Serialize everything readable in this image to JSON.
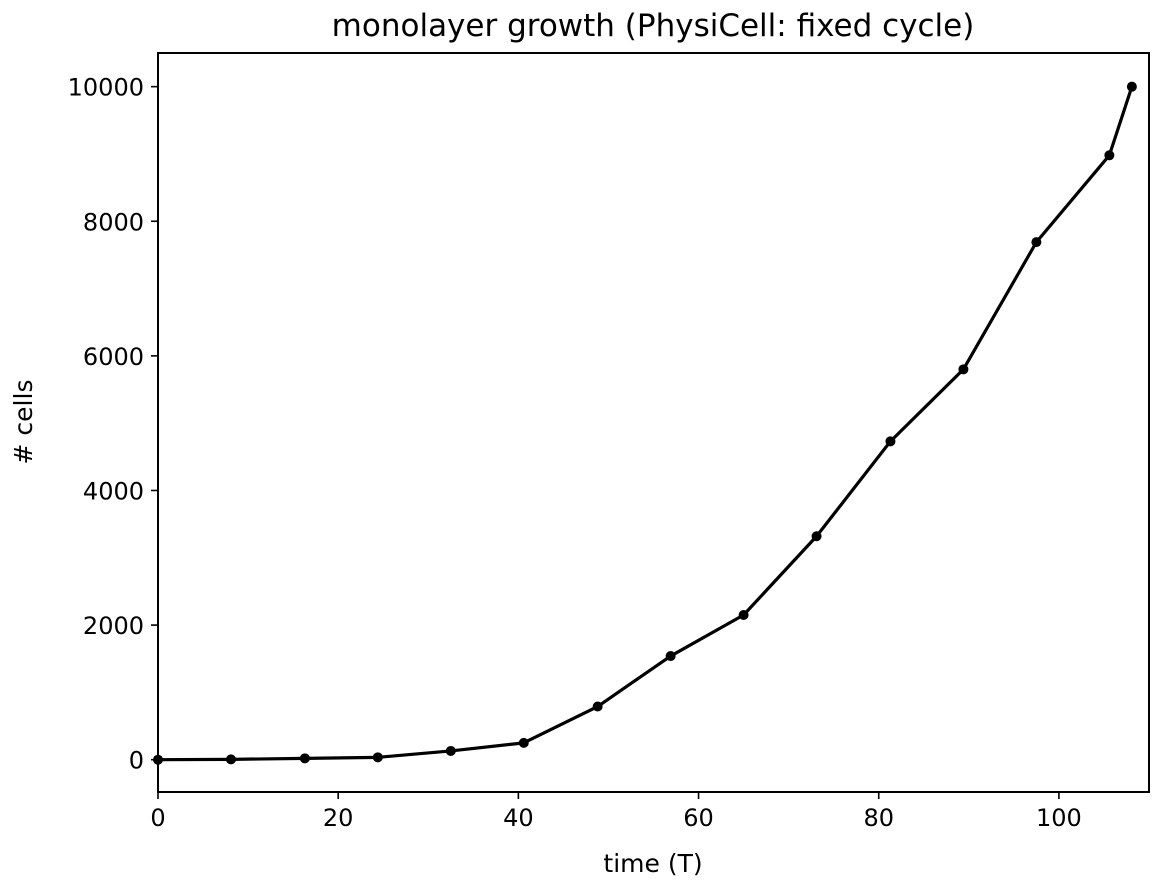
{
  "chart_data": {
    "type": "line",
    "title": "monolayer growth (PhysiCell: fixed cycle)",
    "xlabel": "time (T)",
    "ylabel": "# cells",
    "xlim": [
      0,
      110
    ],
    "ylim": [
      -480,
      10500
    ],
    "xticks": [
      0,
      20,
      40,
      60,
      80,
      100
    ],
    "yticks": [
      0,
      2000,
      4000,
      6000,
      8000,
      10000
    ],
    "grid": false,
    "legend": "none",
    "line_color": "#000000",
    "series": [
      {
        "x": [
          0,
          8.1,
          16.3,
          24.4,
          32.5,
          40.6,
          48.8,
          56.9,
          65.0,
          73.1,
          81.3,
          89.4,
          97.5,
          105.6,
          108.1
        ],
        "y": [
          0,
          5,
          20,
          35,
          130,
          250,
          790,
          1540,
          2150,
          3320,
          4730,
          5800,
          7690,
          8980,
          10000
        ]
      }
    ]
  }
}
